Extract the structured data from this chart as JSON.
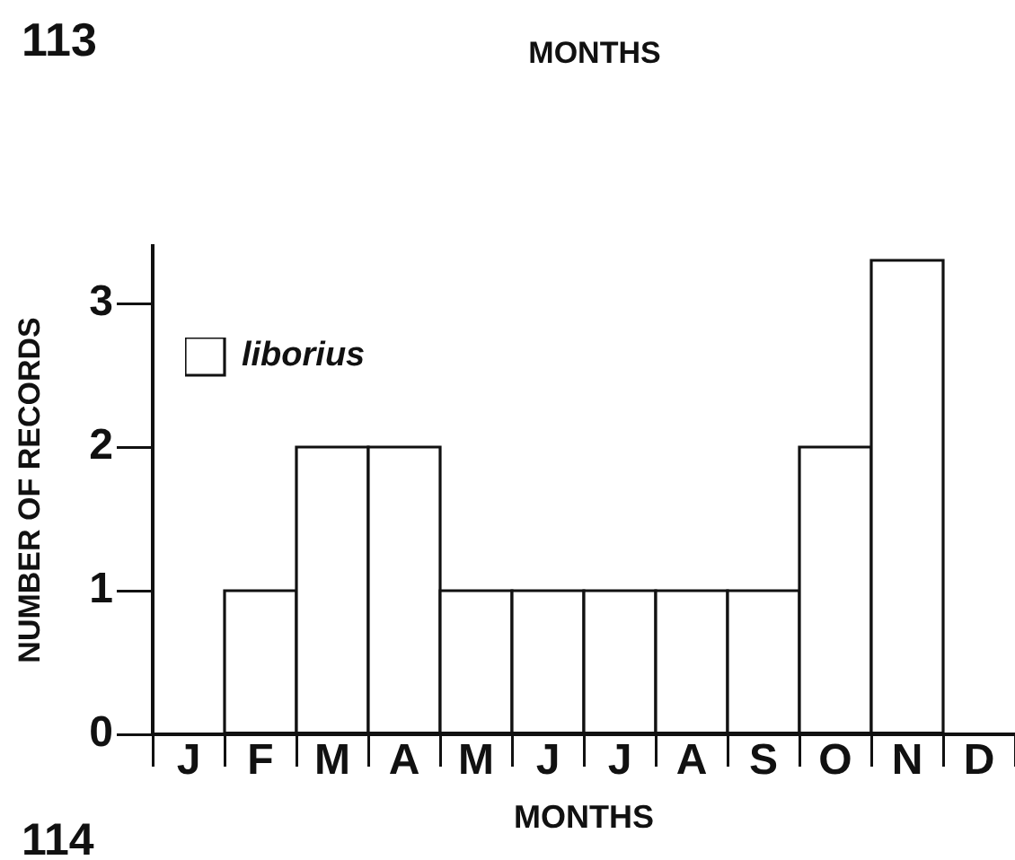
{
  "chart_data": {
    "type": "bar",
    "xlabel": "MONTHS",
    "ylabel": "NUMBER OF RECORDS",
    "categories": [
      "J",
      "F",
      "M",
      "A",
      "M",
      "J",
      "J",
      "A",
      "S",
      "O",
      "N",
      "D"
    ],
    "series": [
      {
        "name": "liborius",
        "color": "#ffffff",
        "values": [
          0,
          1,
          2,
          2,
          1,
          1,
          1,
          1,
          1,
          2,
          3.3,
          0
        ]
      }
    ],
    "ylim": [
      0,
      3.4
    ],
    "yticks": [
      0,
      1,
      2,
      3
    ],
    "legend": "top left",
    "annotations": [
      "113",
      "MONTHS",
      "114"
    ]
  }
}
